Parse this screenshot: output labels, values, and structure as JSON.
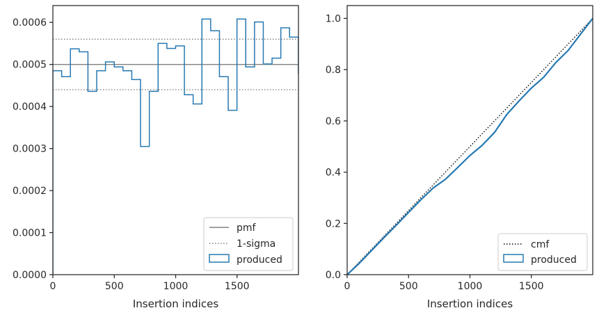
{
  "colors": {
    "produced": "#2678b2",
    "pmf": "#808080",
    "sigma": "#808080",
    "cmf": "#000000",
    "axes": "#262626"
  },
  "chart_data": [
    {
      "type": "step",
      "title": "",
      "xlabel": "Insertion indices",
      "ylabel": "",
      "xlim": [
        0,
        2000
      ],
      "ylim": [
        0,
        0.00064
      ],
      "xticks": [
        0,
        500,
        1000,
        1500
      ],
      "xtick_labels": [
        "0",
        "500",
        "1000",
        "1500"
      ],
      "yticks": [
        0,
        0.0001,
        0.0002,
        0.0003,
        0.0004,
        0.0005,
        0.0006
      ],
      "ytick_labels": [
        "0.0000",
        "0.0001",
        "0.0002",
        "0.0003",
        "0.0004",
        "0.0005",
        "0.0006"
      ],
      "grid": false,
      "legend_position": "lower-right",
      "legend": [
        "pmf",
        "1-sigma",
        "produced"
      ],
      "pmf": 0.0005,
      "sigma_band": [
        0.00044,
        0.00056
      ],
      "bin_width": 71.4,
      "series": [
        {
          "name": "produced",
          "values": [
            0.000485,
            0.000471,
            0.000537,
            0.00053,
            0.000436,
            0.000485,
            0.000506,
            0.000494,
            0.000485,
            0.000464,
            0.000305,
            0.000436,
            0.00055,
            0.000538,
            0.000544,
            0.000428,
            0.000406,
            0.000608,
            0.00058,
            0.000471,
            0.000391,
            0.000608,
            0.000494,
            0.000601,
            0.000501,
            0.000515,
            0.000587,
            0.000565,
            0.000479
          ]
        }
      ]
    },
    {
      "type": "line",
      "title": "",
      "xlabel": "Insertion indices",
      "ylabel": "",
      "xlim": [
        0,
        2000
      ],
      "ylim": [
        0,
        1.05
      ],
      "xticks": [
        0,
        500,
        1000,
        1500
      ],
      "xtick_labels": [
        "0",
        "500",
        "1000",
        "1500"
      ],
      "yticks": [
        0,
        0.2,
        0.4,
        0.6,
        0.8,
        1.0
      ],
      "ytick_labels": [
        "0.0",
        "0.2",
        "0.4",
        "0.6",
        "0.8",
        "1.0"
      ],
      "grid": false,
      "legend_position": "lower-right",
      "legend": [
        "cmf",
        "produced"
      ],
      "series": [
        {
          "name": "cmf",
          "x": [
            0,
            2000
          ],
          "y": [
            0,
            1.0
          ]
        },
        {
          "name": "produced",
          "x": [
            0,
            100,
            200,
            300,
            400,
            500,
            600,
            700,
            800,
            900,
            1000,
            1100,
            1200,
            1300,
            1400,
            1500,
            1600,
            1700,
            1800,
            1900,
            2000
          ],
          "y": [
            0,
            0.045,
            0.095,
            0.145,
            0.193,
            0.243,
            0.292,
            0.338,
            0.372,
            0.418,
            0.465,
            0.505,
            0.555,
            0.625,
            0.678,
            0.728,
            0.77,
            0.828,
            0.875,
            0.938,
            1.0
          ]
        }
      ]
    }
  ]
}
